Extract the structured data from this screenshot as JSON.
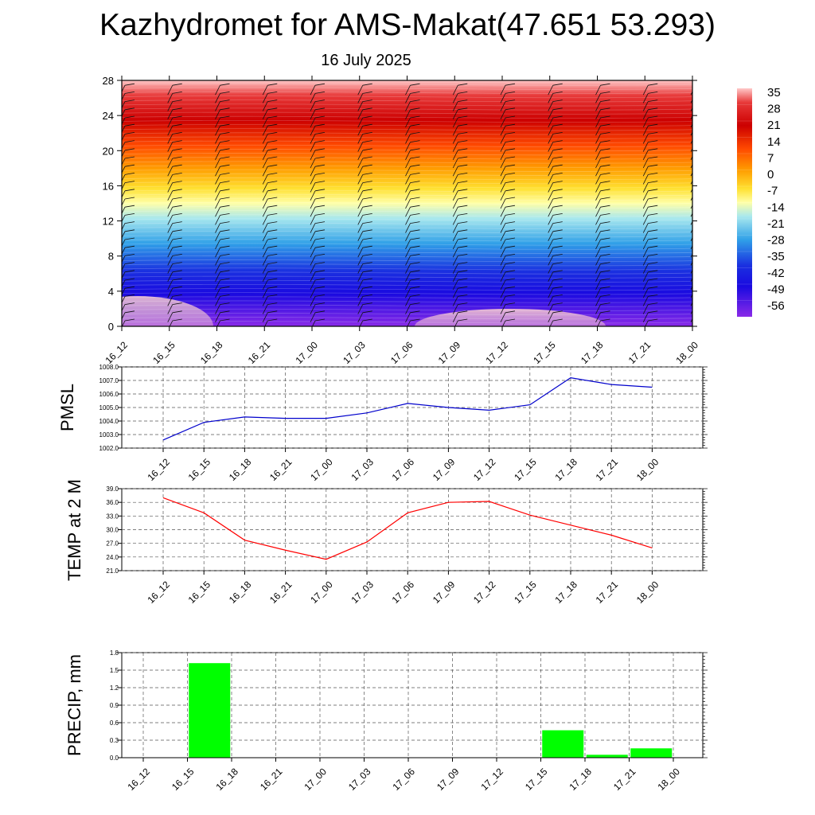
{
  "title": "Kazhydromet for AMS-Makat(47.651 53.293)",
  "subtitle": "16 July 2025",
  "chart_data": [
    {
      "type": "heatmap",
      "name": "cross-section",
      "x": [
        "16_12",
        "16_15",
        "16_18",
        "16_21",
        "17_00",
        "17_03",
        "17_06",
        "17_09",
        "17_12",
        "17_15",
        "17_18",
        "17_21",
        "18_00"
      ],
      "y_ticks": [
        0,
        4,
        8,
        12,
        16,
        20,
        24,
        28
      ],
      "ylim": [
        0,
        28
      ],
      "colorbar": {
        "labels": [
          35,
          28,
          21,
          14,
          7,
          0,
          -7,
          -14,
          -21,
          -28,
          -35,
          -42,
          -49,
          -56
        ],
        "range": [
          -60,
          38
        ],
        "stops": [
          {
            "v": 38,
            "color": "#ffc8c8"
          },
          {
            "v": 32,
            "color": "#e83a3a"
          },
          {
            "v": 22,
            "color": "#cc0000"
          },
          {
            "v": 12,
            "color": "#ff4a00"
          },
          {
            "v": 3,
            "color": "#ff9c00"
          },
          {
            "v": -5,
            "color": "#ffe030"
          },
          {
            "v": -11,
            "color": "#ffffa8"
          },
          {
            "v": -17,
            "color": "#a8e8ee"
          },
          {
            "v": -27,
            "color": "#30a0e8"
          },
          {
            "v": -38,
            "color": "#1a30e0"
          },
          {
            "v": -47,
            "color": "#1a0ae0"
          },
          {
            "v": -60,
            "color": "#8a2ae8"
          }
        ]
      }
    },
    {
      "type": "line",
      "ylabel": "PMSL",
      "x": [
        "16_12",
        "16_15",
        "16_18",
        "16_21",
        "17_00",
        "17_03",
        "17_06",
        "17_09",
        "17_12",
        "17_15",
        "17_18",
        "17_21",
        "18_00"
      ],
      "values": [
        1002.6,
        1003.9,
        1004.3,
        1004.2,
        1004.2,
        1004.6,
        1005.3,
        1005.0,
        1004.8,
        1005.2,
        1007.2,
        1006.7,
        1006.5
      ],
      "ylim": [
        1002.0,
        1008.0
      ],
      "y_ticks": [
        "1002.0",
        "1003.0",
        "1004.0",
        "1005.0",
        "1006.0",
        "1007.0",
        "1008.0"
      ],
      "color": "#0000cc"
    },
    {
      "type": "line",
      "ylabel": "TEMP at 2 M",
      "x": [
        "16_12",
        "16_15",
        "16_18",
        "16_21",
        "17_00",
        "17_03",
        "17_06",
        "17_09",
        "17_12",
        "17_15",
        "17_18",
        "17_21",
        "18_00"
      ],
      "values": [
        37.0,
        33.7,
        27.7,
        25.5,
        23.5,
        27.3,
        33.7,
        36.0,
        36.2,
        33.2,
        31.0,
        28.8,
        26.0
      ],
      "ylim": [
        21.0,
        39.0
      ],
      "y_ticks": [
        "21.0",
        "24.0",
        "27.0",
        "30.0",
        "33.0",
        "36.0",
        "39.0"
      ],
      "color": "#ff0000"
    },
    {
      "type": "bar",
      "ylabel": "PRECIP, mm",
      "categories": [
        "16_12",
        "16_15",
        "16_18",
        "16_21",
        "17_00",
        "17_03",
        "17_06",
        "17_09",
        "17_12",
        "17_15",
        "17_18",
        "17_21",
        "18_00"
      ],
      "values": [
        0,
        1.62,
        0,
        0,
        0,
        0,
        0,
        0,
        0,
        0.47,
        0.05,
        0.16,
        0
      ],
      "ylim": [
        0,
        1.8
      ],
      "y_ticks": [
        "0.0",
        "0.3",
        "0.6",
        "0.9",
        "1.2",
        "1.5",
        "1.8"
      ],
      "color": "#00ff00"
    }
  ]
}
